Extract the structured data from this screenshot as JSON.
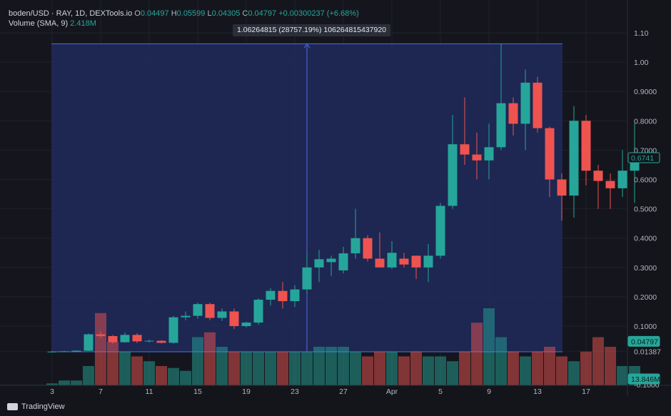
{
  "header": {
    "line1_title": "boden/USD · RAY, 1D, DEXTools.io",
    "o_key": "O",
    "o_val": "0.04497",
    "h_key": "H",
    "h_val": "0.05599",
    "l_key": "L",
    "l_val": "0.04305",
    "c_key": "C",
    "c_val": "0.04797",
    "change": "+0.00300237 (+6.68%)",
    "line2_title": "Volume (SMA, 9)",
    "volume_val": "2.418M"
  },
  "measure": {
    "label": "1.06264815 (28757.19%) 106264815437920"
  },
  "brand": {
    "name": "TradingView"
  },
  "colors": {
    "up": "#26a69a",
    "down": "#ef5350",
    "measure_fill": "#1f2a5c",
    "measure_line": "#4f6ee0"
  },
  "chart_data": {
    "type": "candlestick",
    "y_ticks": [
      "1.10",
      "1.00",
      "0.9000",
      "0.8000",
      "0.7000",
      "0.6000",
      "0.5000",
      "0.4000",
      "0.3000",
      "0.2000",
      "0.1000",
      "0.01387",
      "-0.1000"
    ],
    "y_range": [
      -0.1,
      1.1
    ],
    "x_ticks": [
      "3",
      "7",
      "11",
      "15",
      "19",
      "23",
      "27",
      "Apr",
      "5",
      "9",
      "13",
      "17"
    ],
    "price_badges": [
      {
        "label": "0.6741",
        "value": 0.6741,
        "style": "outline"
      },
      {
        "label": "0.04797",
        "value": 0.04797,
        "style": "filled"
      },
      {
        "label": "13.846M",
        "value": 0.01,
        "style": "filled"
      }
    ],
    "candles": [
      {
        "o": 0.012,
        "h": 0.015,
        "l": 0.011,
        "c": 0.013
      },
      {
        "o": 0.013,
        "h": 0.016,
        "l": 0.012,
        "c": 0.014
      },
      {
        "o": 0.014,
        "h": 0.018,
        "l": 0.013,
        "c": 0.016
      },
      {
        "o": 0.016,
        "h": 0.075,
        "l": 0.015,
        "c": 0.072
      },
      {
        "o": 0.072,
        "h": 0.082,
        "l": 0.06,
        "c": 0.066
      },
      {
        "o": 0.066,
        "h": 0.07,
        "l": 0.04,
        "c": 0.045
      },
      {
        "o": 0.045,
        "h": 0.078,
        "l": 0.043,
        "c": 0.07
      },
      {
        "o": 0.07,
        "h": 0.076,
        "l": 0.042,
        "c": 0.048
      },
      {
        "o": 0.048,
        "h": 0.054,
        "l": 0.044,
        "c": 0.05
      },
      {
        "o": 0.05,
        "h": 0.052,
        "l": 0.041,
        "c": 0.043
      },
      {
        "o": 0.043,
        "h": 0.135,
        "l": 0.04,
        "c": 0.13
      },
      {
        "o": 0.13,
        "h": 0.15,
        "l": 0.12,
        "c": 0.135
      },
      {
        "o": 0.135,
        "h": 0.18,
        "l": 0.125,
        "c": 0.175
      },
      {
        "o": 0.175,
        "h": 0.18,
        "l": 0.12,
        "c": 0.128
      },
      {
        "o": 0.128,
        "h": 0.16,
        "l": 0.118,
        "c": 0.15
      },
      {
        "o": 0.15,
        "h": 0.16,
        "l": 0.09,
        "c": 0.1
      },
      {
        "o": 0.1,
        "h": 0.115,
        "l": 0.095,
        "c": 0.112
      },
      {
        "o": 0.112,
        "h": 0.195,
        "l": 0.105,
        "c": 0.19
      },
      {
        "o": 0.19,
        "h": 0.23,
        "l": 0.17,
        "c": 0.22
      },
      {
        "o": 0.22,
        "h": 0.25,
        "l": 0.16,
        "c": 0.185
      },
      {
        "o": 0.185,
        "h": 0.24,
        "l": 0.165,
        "c": 0.225
      },
      {
        "o": 0.225,
        "h": 0.35,
        "l": 0.21,
        "c": 0.3
      },
      {
        "o": 0.3,
        "h": 0.36,
        "l": 0.25,
        "c": 0.328
      },
      {
        "o": 0.318,
        "h": 0.34,
        "l": 0.27,
        "c": 0.33
      },
      {
        "o": 0.29,
        "h": 0.37,
        "l": 0.28,
        "c": 0.348
      },
      {
        "o": 0.348,
        "h": 0.5,
        "l": 0.33,
        "c": 0.4
      },
      {
        "o": 0.4,
        "h": 0.41,
        "l": 0.32,
        "c": 0.33
      },
      {
        "o": 0.33,
        "h": 0.42,
        "l": 0.3,
        "c": 0.3
      },
      {
        "o": 0.3,
        "h": 0.39,
        "l": 0.295,
        "c": 0.35
      },
      {
        "o": 0.33,
        "h": 0.35,
        "l": 0.3,
        "c": 0.31
      },
      {
        "o": 0.34,
        "h": 0.34,
        "l": 0.26,
        "c": 0.3
      },
      {
        "o": 0.3,
        "h": 0.38,
        "l": 0.25,
        "c": 0.34
      },
      {
        "o": 0.34,
        "h": 0.52,
        "l": 0.33,
        "c": 0.51
      },
      {
        "o": 0.51,
        "h": 0.82,
        "l": 0.5,
        "c": 0.72
      },
      {
        "o": 0.72,
        "h": 0.88,
        "l": 0.65,
        "c": 0.685
      },
      {
        "o": 0.685,
        "h": 0.76,
        "l": 0.6,
        "c": 0.665
      },
      {
        "o": 0.665,
        "h": 0.79,
        "l": 0.6,
        "c": 0.71
      },
      {
        "o": 0.71,
        "h": 1.063,
        "l": 0.7,
        "c": 0.86
      },
      {
        "o": 0.86,
        "h": 0.88,
        "l": 0.75,
        "c": 0.79
      },
      {
        "o": 0.79,
        "h": 0.975,
        "l": 0.7,
        "c": 0.93
      },
      {
        "o": 0.93,
        "h": 0.95,
        "l": 0.76,
        "c": 0.775
      },
      {
        "o": 0.775,
        "h": 0.78,
        "l": 0.54,
        "c": 0.6
      },
      {
        "o": 0.6,
        "h": 0.62,
        "l": 0.46,
        "c": 0.545
      },
      {
        "o": 0.545,
        "h": 0.85,
        "l": 0.47,
        "c": 0.8
      },
      {
        "o": 0.8,
        "h": 0.82,
        "l": 0.58,
        "c": 0.63
      },
      {
        "o": 0.63,
        "h": 0.65,
        "l": 0.5,
        "c": 0.595
      },
      {
        "o": 0.595,
        "h": 0.62,
        "l": 0.5,
        "c": 0.57
      },
      {
        "o": 0.57,
        "h": 0.7,
        "l": 0.54,
        "c": 0.63
      },
      {
        "o": 0.63,
        "h": 0.79,
        "l": 0.52,
        "c": 0.674
      }
    ],
    "volumes_rel": [
      0.02,
      0.05,
      0.05,
      0.2,
      0.75,
      0.45,
      0.35,
      0.3,
      0.25,
      0.2,
      0.18,
      0.15,
      0.5,
      0.55,
      0.4,
      0.35,
      0.35,
      0.35,
      0.35,
      0.35,
      0.35,
      0.35,
      0.4,
      0.4,
      0.4,
      0.35,
      0.3,
      0.35,
      0.35,
      0.3,
      0.35,
      0.3,
      0.3,
      0.25,
      0.35,
      0.65,
      0.8,
      0.5,
      0.35,
      0.3,
      0.35,
      0.4,
      0.3,
      0.25,
      0.35,
      0.5,
      0.4,
      0.2,
      0.2
    ]
  }
}
